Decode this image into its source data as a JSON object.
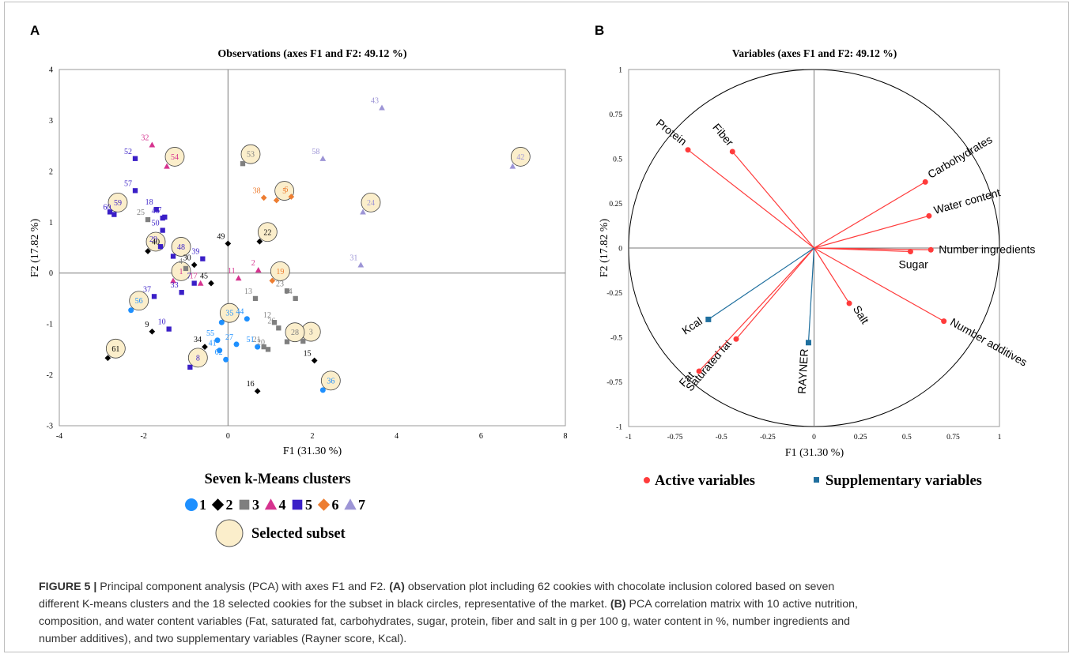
{
  "panels": {
    "a_label": "A",
    "b_label": "B"
  },
  "legend": {
    "title": "Seven k-Means clusters",
    "selected_label": "Selected subset",
    "clusters": [
      {
        "label": "1",
        "color": "#1e90ff",
        "shape": "circle"
      },
      {
        "label": "2",
        "color": "#000000",
        "shape": "diamond"
      },
      {
        "label": "3",
        "color": "#7f7f7f",
        "shape": "square"
      },
      {
        "label": "4",
        "color": "#d6338f",
        "shape": "triangle"
      },
      {
        "label": "5",
        "color": "#3a1fc7",
        "shape": "square"
      },
      {
        "label": "6",
        "color": "#ed7d31",
        "shape": "diamond"
      },
      {
        "label": "7",
        "color": "#9d95d6",
        "shape": "triangle"
      }
    ],
    "active_label": "Active variables",
    "supplementary_label": "Supplementary variables"
  },
  "caption": {
    "figure_label": "FIGURE 5 |",
    "line1_rest": " Principal component analysis (PCA) with axes F1 and F2.",
    "a_marker": "(A)",
    "line1_tail": " observation plot including 62 cookies with chocolate inclusion colored based on seven",
    "line2": "different K-means clusters and the 18 selected cookies for the subset in black circles, representative of the market.",
    "b_marker": "(B)",
    "line2_tail": " PCA correlation matrix with 10 active nutrition,",
    "line3": "composition, and water content variables (Fat, saturated fat, carbohydrates, sugar, protein, fiber and salt in g per 100 g, water content in %, number ingredients and",
    "line4": "number additives), and two supplementary variables (Rayner score, Kcal)."
  },
  "chart_data": [
    {
      "type": "scatter",
      "title": "Observations (axes F1 and F2: 49.12 %)",
      "xlabel": "F1 (31.30 %)",
      "ylabel": "F2 (17.82 %)",
      "xlim": [
        -4,
        8
      ],
      "ylim": [
        -3,
        4
      ],
      "xticks": [
        "-4",
        "-2",
        "0",
        "2",
        "4",
        "6",
        "8"
      ],
      "yticks": [
        "-3",
        "-2",
        "-1",
        "0",
        "1",
        "2",
        "3",
        "4"
      ],
      "points": [
        {
          "id": "1",
          "x": -1.3,
          "y": -0.15,
          "cluster": 4,
          "selected": true
        },
        {
          "id": "2",
          "x": 0.72,
          "y": 0.06,
          "cluster": 4,
          "selected": false
        },
        {
          "id": "3",
          "x": 1.78,
          "y": -1.34,
          "cluster": 3,
          "selected": true
        },
        {
          "id": "4",
          "x": -1.0,
          "y": 0.09,
          "cluster": 3,
          "selected": false
        },
        {
          "id": "5",
          "x": 1.15,
          "y": 1.43,
          "cluster": 6,
          "selected": true
        },
        {
          "id": "6",
          "x": 1.5,
          "y": 1.5,
          "cluster": 6,
          "selected": false
        },
        {
          "id": "7",
          "x": -0.8,
          "y": -0.2,
          "cluster": 5,
          "selected": false
        },
        {
          "id": "8",
          "x": -0.9,
          "y": -1.85,
          "cluster": 5,
          "selected": true
        },
        {
          "id": "9",
          "x": -1.8,
          "y": -1.15,
          "cluster": 2,
          "selected": false
        },
        {
          "id": "10",
          "x": -1.4,
          "y": -1.1,
          "cluster": 5,
          "selected": false
        },
        {
          "id": "11",
          "x": 0.25,
          "y": -0.1,
          "cluster": 4,
          "selected": false
        },
        {
          "id": "12",
          "x": 1.1,
          "y": -0.97,
          "cluster": 3,
          "selected": false
        },
        {
          "id": "13",
          "x": 0.65,
          "y": -0.5,
          "cluster": 3,
          "selected": false
        },
        {
          "id": "14",
          "x": 1.6,
          "y": -0.5,
          "cluster": 3,
          "selected": false
        },
        {
          "id": "15",
          "x": 2.05,
          "y": -1.72,
          "cluster": 2,
          "selected": false
        },
        {
          "id": "16",
          "x": 0.7,
          "y": -2.32,
          "cluster": 2,
          "selected": false
        },
        {
          "id": "17",
          "x": -0.65,
          "y": -0.2,
          "cluster": 4,
          "selected": false
        },
        {
          "id": "18",
          "x": -1.7,
          "y": 1.25,
          "cluster": 5,
          "selected": false
        },
        {
          "id": "19",
          "x": 1.05,
          "y": -0.15,
          "cluster": 6,
          "selected": true
        },
        {
          "id": "20",
          "x": 0.95,
          "y": -1.5,
          "cluster": 3,
          "selected": false
        },
        {
          "id": "21",
          "x": 0.85,
          "y": -1.45,
          "cluster": 3,
          "selected": false
        },
        {
          "id": "22",
          "x": 0.75,
          "y": 0.62,
          "cluster": 2,
          "selected": true
        },
        {
          "id": "23",
          "x": 1.4,
          "y": -0.35,
          "cluster": 3,
          "selected": false
        },
        {
          "id": "24",
          "x": 3.2,
          "y": 1.2,
          "cluster": 7,
          "selected": true
        },
        {
          "id": "25",
          "x": -1.9,
          "y": 1.05,
          "cluster": 3,
          "selected": false
        },
        {
          "id": "26",
          "x": 1.2,
          "y": -1.08,
          "cluster": 3,
          "selected": false
        },
        {
          "id": "27",
          "x": 0.2,
          "y": -1.4,
          "cluster": 1,
          "selected": false
        },
        {
          "id": "28",
          "x": 1.4,
          "y": -1.35,
          "cluster": 3,
          "selected": true
        },
        {
          "id": "29",
          "x": -1.6,
          "y": 0.52,
          "cluster": 5,
          "selected": false
        },
        {
          "id": "30",
          "x": -0.8,
          "y": 0.16,
          "cluster": 2,
          "selected": false
        },
        {
          "id": "31",
          "x": 3.15,
          "y": 0.16,
          "cluster": 7,
          "selected": false
        },
        {
          "id": "32",
          "x": -1.8,
          "y": 2.52,
          "cluster": 4,
          "selected": false
        },
        {
          "id": "33",
          "x": -1.1,
          "y": -0.38,
          "cluster": 5,
          "selected": false
        },
        {
          "id": "34",
          "x": -0.55,
          "y": -1.45,
          "cluster": 2,
          "selected": false
        },
        {
          "id": "35",
          "x": -0.15,
          "y": -0.97,
          "cluster": 1,
          "selected": true
        },
        {
          "id": "36",
          "x": 2.25,
          "y": -2.3,
          "cluster": 1,
          "selected": true
        },
        {
          "id": "37",
          "x": -1.75,
          "y": -0.46,
          "cluster": 5,
          "selected": false
        },
        {
          "id": "38",
          "x": 0.85,
          "y": 1.48,
          "cluster": 6,
          "selected": false
        },
        {
          "id": "39",
          "x": -0.6,
          "y": 0.28,
          "cluster": 5,
          "selected": false
        },
        {
          "id": "40",
          "x": -1.9,
          "y": 0.43,
          "cluster": 2,
          "selected": true
        },
        {
          "id": "41",
          "x": -0.2,
          "y": -1.52,
          "cluster": 1,
          "selected": false
        },
        {
          "id": "42",
          "x": 6.75,
          "y": 2.1,
          "cluster": 7,
          "selected": true
        },
        {
          "id": "43",
          "x": 3.65,
          "y": 3.25,
          "cluster": 7,
          "selected": false
        },
        {
          "id": "44",
          "x": 0.45,
          "y": -0.9,
          "cluster": 1,
          "selected": false
        },
        {
          "id": "45",
          "x": -0.4,
          "y": -0.2,
          "cluster": 2,
          "selected": false
        },
        {
          "id": "46",
          "x": -1.55,
          "y": 1.08,
          "cluster": 5,
          "selected": false
        },
        {
          "id": "47",
          "x": -1.5,
          "y": 1.1,
          "cluster": 5,
          "selected": false
        },
        {
          "id": "48",
          "x": -1.3,
          "y": 0.33,
          "cluster": 5,
          "selected": true
        },
        {
          "id": "49",
          "x": 0.0,
          "y": 0.58,
          "cluster": 2,
          "selected": false
        },
        {
          "id": "50",
          "x": -1.55,
          "y": 0.84,
          "cluster": 5,
          "selected": false
        },
        {
          "id": "51",
          "x": 0.7,
          "y": -1.45,
          "cluster": 1,
          "selected": false
        },
        {
          "id": "52",
          "x": -2.2,
          "y": 2.25,
          "cluster": 5,
          "selected": false
        },
        {
          "id": "53",
          "x": 0.35,
          "y": 2.15,
          "cluster": 3,
          "selected": true
        },
        {
          "id": "54",
          "x": -1.45,
          "y": 2.1,
          "cluster": 4,
          "selected": true
        },
        {
          "id": "55",
          "x": -0.25,
          "y": -1.32,
          "cluster": 1,
          "selected": false
        },
        {
          "id": "56",
          "x": -2.3,
          "y": -0.73,
          "cluster": 1,
          "selected": true
        },
        {
          "id": "57",
          "x": -2.2,
          "y": 1.62,
          "cluster": 5,
          "selected": false
        },
        {
          "id": "58",
          "x": 2.25,
          "y": 2.25,
          "cluster": 7,
          "selected": false
        },
        {
          "id": "59",
          "x": -2.8,
          "y": 1.2,
          "cluster": 5,
          "selected": true
        },
        {
          "id": "60",
          "x": -2.7,
          "y": 1.15,
          "cluster": 5,
          "selected": false
        },
        {
          "id": "61",
          "x": -2.85,
          "y": -1.67,
          "cluster": 2,
          "selected": true
        },
        {
          "id": "62",
          "x": -0.05,
          "y": -1.7,
          "cluster": 1,
          "selected": false
        }
      ]
    },
    {
      "type": "scatter",
      "title": "Variables (axes F1 and F2: 49.12 %)",
      "xlabel": "F1 (31.30 %)",
      "ylabel": "F2 (17.82 %)",
      "xlim": [
        -1,
        1
      ],
      "ylim": [
        -1,
        1
      ],
      "xticks": [
        "-1",
        "-0.75",
        "-0.5",
        "-0.25",
        "0",
        "0.25",
        "0.5",
        "0.75",
        "1"
      ],
      "yticks": [
        "-1",
        "-0.75",
        "-0.5",
        "-0.25",
        "0",
        "0.25",
        "0.5",
        "0.75",
        "1"
      ],
      "series": [
        {
          "name": "Active variables",
          "color": "#ff3b3b",
          "points": [
            {
              "label": "Protein",
              "x": -0.68,
              "y": 0.55
            },
            {
              "label": "Fiber",
              "x": -0.44,
              "y": 0.54
            },
            {
              "label": "Carbohydrates",
              "x": 0.6,
              "y": 0.37
            },
            {
              "label": "Water content",
              "x": 0.62,
              "y": 0.18
            },
            {
              "label": "Number ingredients",
              "x": 0.63,
              "y": -0.01
            },
            {
              "label": "Sugar",
              "x": 0.52,
              "y": -0.02
            },
            {
              "label": "Number additives",
              "x": 0.7,
              "y": -0.41
            },
            {
              "label": "Salt",
              "x": 0.19,
              "y": -0.31
            },
            {
              "label": "Saturated fat",
              "x": -0.42,
              "y": -0.51
            },
            {
              "label": "Fat",
              "x": -0.62,
              "y": -0.69
            }
          ]
        },
        {
          "name": "Supplementary variables",
          "color": "#1f6f9e",
          "points": [
            {
              "label": "Kcal",
              "x": -0.57,
              "y": -0.4
            },
            {
              "label": "RAYNER",
              "x": -0.03,
              "y": -0.53
            }
          ]
        }
      ]
    }
  ]
}
